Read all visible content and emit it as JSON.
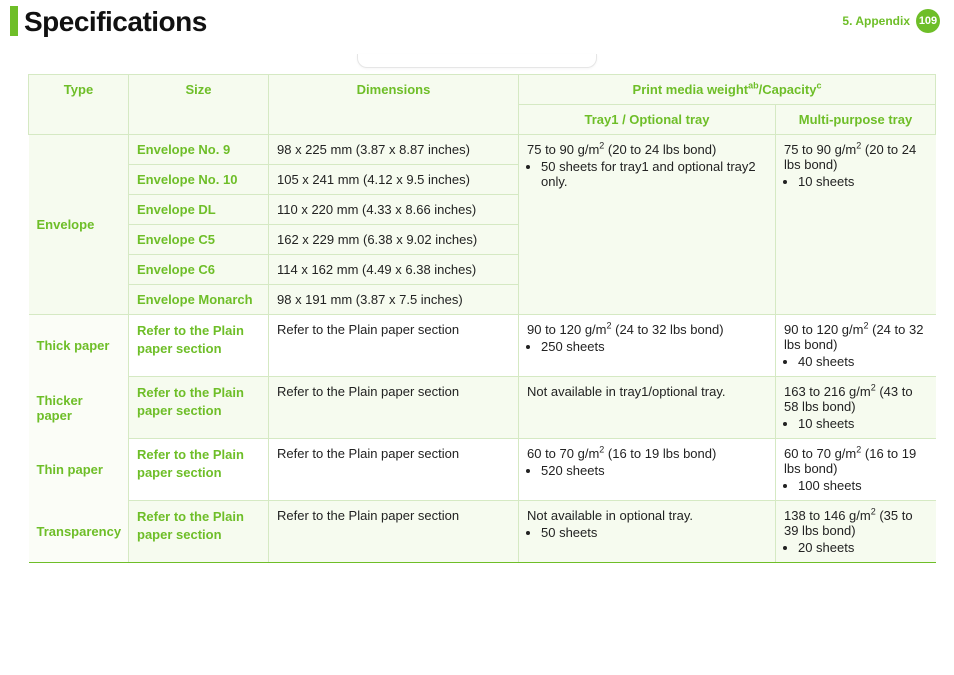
{
  "header": {
    "title": "Specifications",
    "section_label": "5.  Appendix",
    "page_number": "109"
  },
  "columns": {
    "type": "Type",
    "size": "Size",
    "dimensions": "Dimensions",
    "weight_group_html": "Print media weight<sup>ab</sup>/Capacity<sup>c</sup>",
    "tray1": "Tray1 / Optional tray",
    "mp": "Multi-purpose tray"
  },
  "envelope": {
    "type": "Envelope",
    "rows": [
      {
        "size": "Envelope No. 9",
        "dim": "98 x 225 mm (3.87 x 8.87 inches)"
      },
      {
        "size": "Envelope No. 10",
        "dim": "105 x 241 mm (4.12 x 9.5 inches)"
      },
      {
        "size": "Envelope DL",
        "dim": "110 x 220 mm (4.33 x 8.66 inches)"
      },
      {
        "size": "Envelope C5",
        "dim": "162 x 229 mm (6.38 x 9.02 inches)"
      },
      {
        "size": "Envelope C6",
        "dim": "114 x 162 mm (4.49 x 6.38 inches)"
      },
      {
        "size": "Envelope Monarch",
        "dim": "98 x 191 mm (3.87 x 7.5 inches)"
      }
    ],
    "tray1_html": "75 to 90 g/m<sup>2</sup> (20 to 24 lbs bond)",
    "tray1_bullet": "50 sheets for tray1 and optional tray2 only.",
    "mp_html": "75 to 90 g/m<sup>2</sup> (20 to 24 lbs bond)",
    "mp_bullet": "10 sheets"
  },
  "thick": {
    "type": "Thick paper",
    "size": "Refer to the Plain paper section",
    "dim": "Refer to the Plain paper section",
    "tray1_html": "90 to 120 g/m<sup>2</sup> (24 to 32 lbs bond)",
    "tray1_bullet": "250 sheets",
    "mp_html": "90 to 120 g/m<sup>2</sup> (24 to 32 lbs bond)",
    "mp_bullet": "40 sheets"
  },
  "thicker": {
    "type": "Thicker paper",
    "size": "Refer to the Plain paper section",
    "dim": "Refer to the Plain paper section",
    "tray1": "Not available in tray1/optional tray.",
    "mp_html": "163 to 216 g/m<sup>2</sup> (43 to 58 lbs bond)",
    "mp_bullet": "10 sheets"
  },
  "thin": {
    "type": "Thin paper",
    "size": "Refer to the Plain paper section",
    "dim": "Refer to the Plain paper section",
    "tray1_html": "60 to 70 g/m<sup>2</sup> (16 to 19 lbs bond)",
    "tray1_bullet": "520 sheets",
    "mp_html": "60 to 70 g/m<sup>2</sup> (16 to 19 lbs bond)",
    "mp_bullet": "100 sheets"
  },
  "transp": {
    "type": "Transparency",
    "size": "Refer to the Plain paper section",
    "dim": "Refer to the Plain paper section",
    "tray1": "Not available in optional tray.",
    "tray1_bullet": "50 sheets",
    "mp_html": "138 to 146 g/m<sup>2</sup> (35 to 39 lbs bond)",
    "mp_bullet": "20 sheets"
  }
}
